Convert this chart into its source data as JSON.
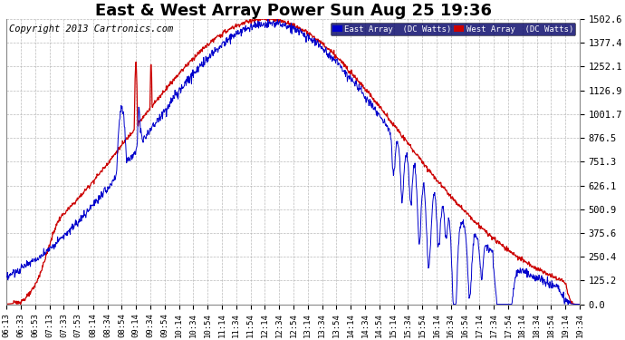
{
  "title": "East & West Array Power Sun Aug 25 19:36",
  "copyright": "Copyright 2013 Cartronics.com",
  "legend_east": "East Array  (DC Watts)",
  "legend_west": "West Array  (DC Watts)",
  "east_color": "#0000CC",
  "west_color": "#CC0000",
  "bg_color": "#FFFFFF",
  "plot_bg_color": "#FFFFFF",
  "yticks": [
    0.0,
    125.2,
    250.4,
    375.6,
    500.9,
    626.1,
    751.3,
    876.5,
    1001.7,
    1126.9,
    1252.1,
    1377.4,
    1502.6
  ],
  "ylim": [
    0.0,
    1502.6
  ],
  "xtick_labels": [
    "06:13",
    "06:33",
    "06:53",
    "07:13",
    "07:33",
    "07:53",
    "08:14",
    "08:34",
    "08:54",
    "09:14",
    "09:34",
    "09:54",
    "10:14",
    "10:34",
    "10:54",
    "11:14",
    "11:34",
    "11:54",
    "12:14",
    "12:34",
    "12:54",
    "13:14",
    "13:34",
    "13:54",
    "14:14",
    "14:34",
    "14:54",
    "15:14",
    "15:34",
    "15:54",
    "16:14",
    "16:34",
    "16:54",
    "17:14",
    "17:34",
    "17:54",
    "18:14",
    "18:34",
    "18:54",
    "19:14",
    "19:34"
  ],
  "title_fontsize": 13,
  "copyright_fontsize": 7.5,
  "tick_fontsize": 6.5,
  "ytick_fontsize": 7.5,
  "grid_color": "#AAAAAA",
  "grid_style": "--",
  "grid_alpha": 0.8
}
